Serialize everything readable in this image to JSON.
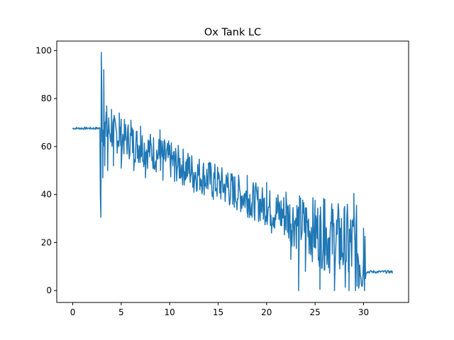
{
  "chart_data": {
    "type": "line",
    "title": "Ox Tank LC",
    "xlabel": "",
    "ylabel": "",
    "xlim": [
      -1.65,
      34.65
    ],
    "ylim": [
      -4.95,
      103.95
    ],
    "xticks": [
      0,
      5,
      10,
      15,
      20,
      25,
      30
    ],
    "yticks": [
      0,
      20,
      40,
      60,
      80,
      100
    ],
    "grid": false,
    "color": "#1f77b4",
    "series": [
      {
        "points": [
          [
            0.0,
            67.5
          ],
          [
            2.7,
            67.8
          ],
          [
            2.9,
            30.5
          ],
          [
            2.95,
            99.2
          ],
          [
            3.1,
            47.0
          ],
          [
            3.2,
            92.0
          ],
          [
            3.3,
            52.0
          ],
          [
            3.5,
            77.0
          ],
          [
            3.6,
            50.0
          ],
          [
            4.0,
            75.5
          ],
          [
            4.2,
            52.0
          ],
          [
            4.8,
            74.0
          ],
          [
            5.0,
            51.0
          ],
          [
            6.0,
            71.0
          ],
          [
            6.3,
            50.0
          ],
          [
            7.0,
            68.5
          ],
          [
            7.5,
            47.0
          ],
          [
            9.0,
            67.0
          ],
          [
            9.3,
            46.0
          ],
          [
            10.0,
            60.5
          ],
          [
            10.5,
            45.5
          ],
          [
            12.0,
            55.0
          ],
          [
            12.5,
            41.0
          ],
          [
            14.0,
            53.0
          ],
          [
            14.5,
            38.0
          ],
          [
            16.0,
            49.0
          ],
          [
            16.5,
            36.0
          ],
          [
            18.0,
            48.0
          ],
          [
            18.5,
            30.5
          ],
          [
            20.0,
            45.0
          ],
          [
            20.5,
            24.0
          ],
          [
            22.0,
            41.0
          ],
          [
            22.5,
            13.0
          ],
          [
            23.3,
            0.0
          ],
          [
            23.5,
            36.0
          ],
          [
            24.0,
            8.0
          ],
          [
            25.0,
            32.0
          ],
          [
            25.5,
            0.5
          ],
          [
            26.0,
            38.0
          ],
          [
            27.0,
            0.0
          ],
          [
            27.5,
            30.0
          ],
          [
            28.5,
            0.0
          ],
          [
            29.0,
            40.5
          ],
          [
            29.5,
            1.0
          ],
          [
            30.0,
            26.0
          ],
          [
            30.2,
            5.0
          ],
          [
            31.0,
            7.5
          ],
          [
            33.0,
            8.0
          ]
        ]
      }
    ]
  }
}
